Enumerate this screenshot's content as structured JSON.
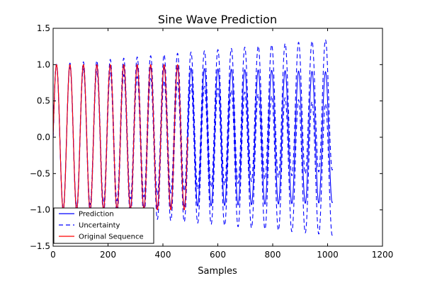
{
  "chart_data": {
    "type": "line",
    "title": "Sine Wave Prediction",
    "xlabel": "Samples",
    "ylabel": "",
    "xlim": [
      0,
      1200
    ],
    "ylim": [
      -1.5,
      1.5
    ],
    "xticks": [
      0,
      200,
      400,
      600,
      800,
      1000,
      1200
    ],
    "xtick_labels": [
      "0",
      "200",
      "400",
      "600",
      "800",
      "1000",
      "1200"
    ],
    "yticks": [
      -1.5,
      -1.0,
      -0.5,
      0.0,
      0.5,
      1.0,
      1.5
    ],
    "ytick_labels": [
      "−1.5",
      "−1.0",
      "−0.5",
      "0.0",
      "0.5",
      "1.0",
      "1.5"
    ],
    "grid": false,
    "legend_position": "bottom-left",
    "signal": {
      "period_samples": 49,
      "x_start": 0
    },
    "series": [
      {
        "name": "Prediction",
        "style": "solid",
        "color": "#0000ff",
        "x_range": [
          0,
          1018
        ],
        "amplitude_start": 1.0,
        "amplitude_end": 0.9
      },
      {
        "name": "Uncertainty",
        "style": "dashed",
        "color": "#0000ff",
        "x_range": [
          0,
          1018
        ],
        "band_start": 0.0,
        "band_end": 0.45,
        "note": "upper/lower bounds = prediction ± band"
      },
      {
        "name": "Original Sequence",
        "style": "solid",
        "color": "#ff0000",
        "x_range": [
          0,
          490
        ],
        "amplitude": 1.0
      }
    ]
  }
}
